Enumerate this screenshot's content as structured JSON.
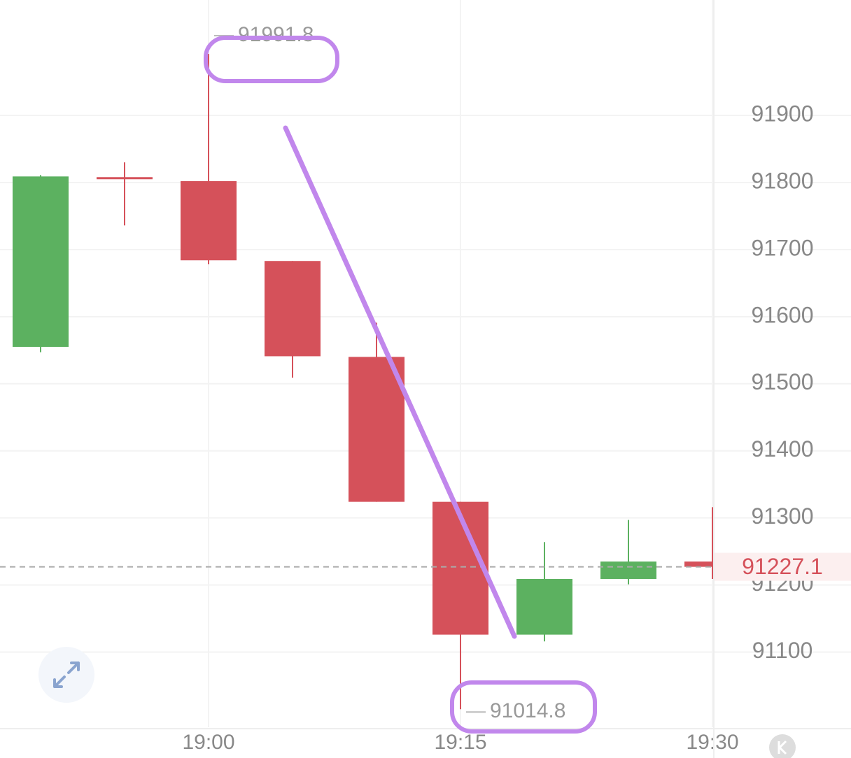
{
  "chart_data": {
    "type": "candlestick",
    "categories": [
      null,
      null,
      "19:00",
      null,
      null,
      "19:15",
      null,
      null,
      "19:30"
    ],
    "open": [
      91555,
      91808,
      91802,
      91683,
      91540,
      91324,
      91126,
      91209,
      91235
    ],
    "high": [
      91811,
      91830,
      91991.8,
      91683,
      91591,
      91324,
      91264,
      91297,
      91316
    ],
    "low": [
      91547,
      91736,
      91678,
      91509,
      91324,
      91014.8,
      91116,
      91201,
      91209
    ],
    "close": [
      91809,
      91805,
      91684,
      91541,
      91324,
      91126,
      91209,
      91235,
      91227.1
    ],
    "up_color": "#5cb160",
    "down_color": "#d5515a",
    "ylim": [
      90988,
      92072
    ],
    "yticks": [
      91100,
      91200,
      91300,
      91400,
      91500,
      91600,
      91700,
      91800,
      91900
    ],
    "grid": true
  }
}
